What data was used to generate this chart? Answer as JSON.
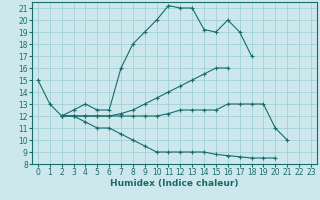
{
  "title": "",
  "xlabel": "Humidex (Indice chaleur)",
  "background_color": "#cce8ec",
  "grid_color": "#99ccd4",
  "line_color": "#1a6b6b",
  "xlim": [
    -0.5,
    23.5
  ],
  "ylim": [
    8,
    21.5
  ],
  "xticks": [
    0,
    1,
    2,
    3,
    4,
    5,
    6,
    7,
    8,
    9,
    10,
    11,
    12,
    13,
    14,
    15,
    16,
    17,
    18,
    19,
    20,
    21,
    22,
    23
  ],
  "yticks": [
    8,
    9,
    10,
    11,
    12,
    13,
    14,
    15,
    16,
    17,
    18,
    19,
    20,
    21
  ],
  "series": [
    [
      15,
      13,
      12,
      12.5,
      13,
      12.5,
      12.5,
      16,
      18,
      19,
      20,
      21.2,
      21,
      21,
      19.2,
      19,
      20,
      19,
      17,
      null,
      null,
      null,
      null,
      null
    ],
    [
      null,
      null,
      12,
      12,
      12,
      12,
      12,
      12.2,
      12.5,
      13,
      13.5,
      14,
      14.5,
      15,
      15.5,
      16,
      16,
      null,
      null,
      null,
      null,
      null,
      null,
      null
    ],
    [
      null,
      null,
      12,
      12,
      12,
      12,
      12,
      12,
      12,
      12,
      12,
      12.2,
      12.5,
      12.5,
      12.5,
      12.5,
      13,
      13,
      13,
      13,
      11,
      10,
      null,
      null
    ],
    [
      null,
      null,
      12,
      12,
      11.5,
      11,
      11,
      10.5,
      10,
      9.5,
      9,
      9,
      9,
      9,
      9,
      8.8,
      8.7,
      8.6,
      8.5,
      8.5,
      8.5,
      null,
      null,
      null
    ]
  ]
}
